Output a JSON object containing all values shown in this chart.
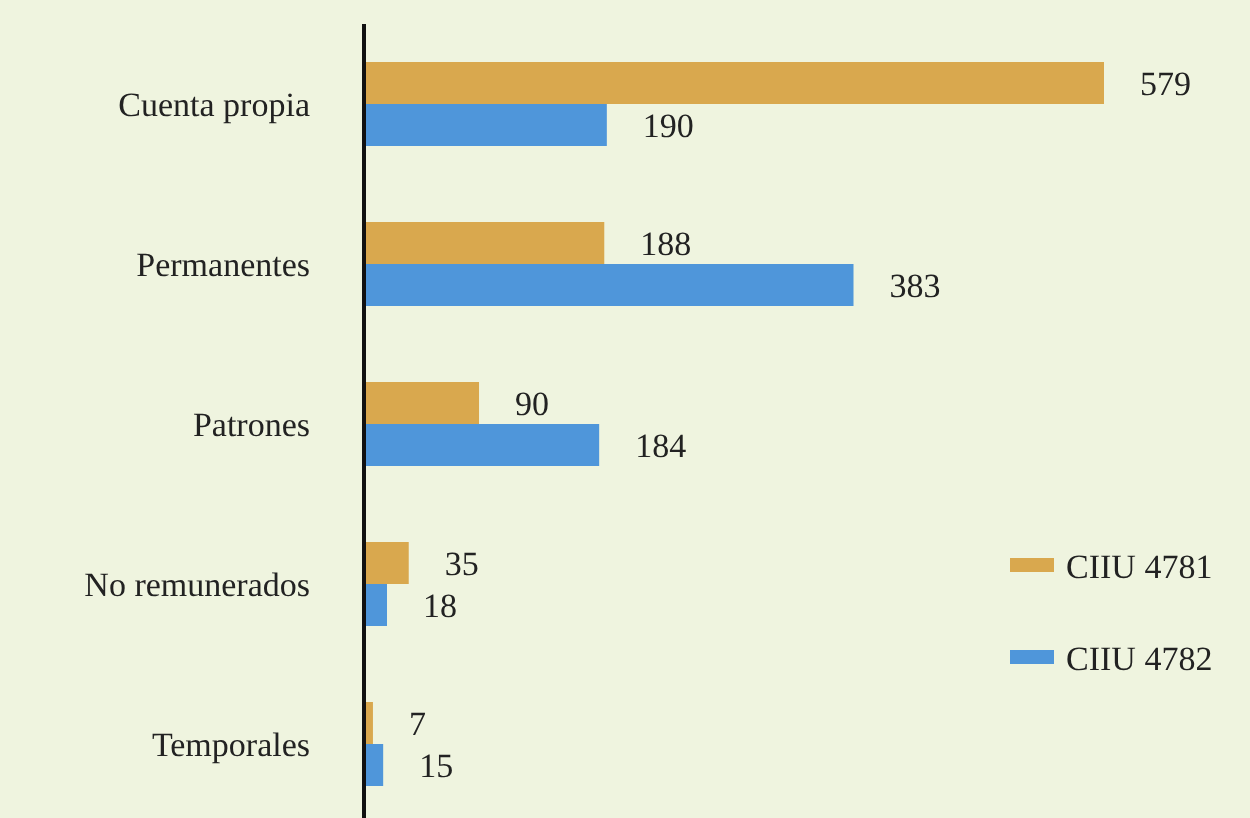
{
  "chart_data": {
    "type": "bar",
    "orientation": "horizontal",
    "categories": [
      "Cuenta propia",
      "Permanentes",
      "Patrones",
      "No remunerados",
      "Temporales"
    ],
    "series": [
      {
        "name": "CIIU 4781",
        "color": "#d9a84e",
        "values": [
          579,
          188,
          90,
          35,
          7
        ]
      },
      {
        "name": "CIIU 4782",
        "color": "#4f96da",
        "values": [
          190,
          383,
          184,
          18,
          15
        ]
      }
    ],
    "data_labels": true,
    "legend": "right"
  }
}
